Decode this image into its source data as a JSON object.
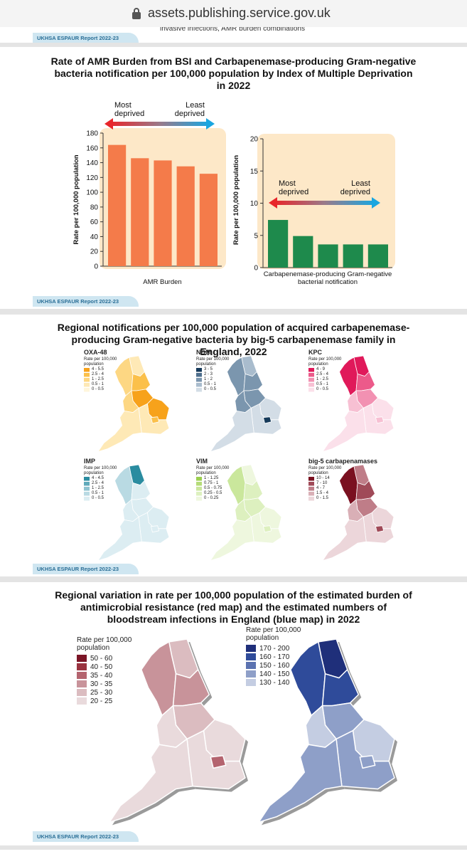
{
  "browser": {
    "url": "assets.publishing.service.gov.uk"
  },
  "fragment": {
    "caption": "invasive infections, AMR burden combinations",
    "tag": "UKHSA ESPAUR Report 2022-23"
  },
  "section1": {
    "title": "Rate of AMR Burden from BSI and Carbapenemase-producing Gram-negative bacteria notification per 100,000 population by Index of Multiple Deprivation in 2022",
    "tag": "UKHSA ESPAUR Report 2022-23"
  },
  "chart_data": [
    {
      "type": "bar",
      "categories": [
        null,
        null,
        null,
        null,
        null
      ],
      "values": [
        164,
        146,
        143,
        135,
        125
      ],
      "color": "#f47b4a",
      "background": "#fde8c8",
      "ylim": [
        0,
        180
      ],
      "yticks": [
        0,
        20,
        40,
        60,
        80,
        100,
        120,
        140,
        160,
        180
      ],
      "ylabel": "Rate per 100,000 population",
      "xlabel": "AMR Burden",
      "arrow": {
        "left": "Most deprived",
        "right": "Least deprived"
      }
    },
    {
      "type": "bar",
      "categories": [
        null,
        null,
        null,
        null,
        null
      ],
      "values": [
        7.4,
        4.9,
        3.6,
        3.6,
        3.6
      ],
      "color": "#1e8a4c",
      "background": "#fde8c8",
      "ylim": [
        0,
        21
      ],
      "yticks": [
        0,
        5,
        10,
        15,
        20
      ],
      "ylabel": "Rate per 100,000 population",
      "xlabel": "Carbapenemase-producing Gram-negative bacterial notification",
      "arrow": {
        "left": "Most deprived",
        "right": "Least deprived"
      }
    }
  ],
  "section2": {
    "title": "Regional notifications per 100,000 population of acquired carbapenemase-producing Gram-negative bacteria by big-5 carbapenemase family in England, 2022",
    "maps": [
      {
        "title": "OXA-48",
        "legend_title": "Rate per 100,000 population",
        "legend": [
          {
            "label": "4 - 5.5",
            "color": "#f7a21b"
          },
          {
            "label": "2.5 - 4",
            "color": "#fbc04a"
          },
          {
            "label": "1 - 2.5",
            "color": "#fdd783"
          },
          {
            "label": "0.5 - 1",
            "color": "#fee9b6"
          },
          {
            "label": "0 - 0.5",
            "color": "#fff6dc"
          }
        ]
      },
      {
        "title": "NDM",
        "legend_title": "Rate per 100,000 population",
        "legend": [
          {
            "label": "3 - 5",
            "color": "#163a5a"
          },
          {
            "label": "2 - 3",
            "color": "#4d6e8c"
          },
          {
            "label": "1 - 2",
            "color": "#7b96ae"
          },
          {
            "label": "0.5 - 1",
            "color": "#a9bccd"
          },
          {
            "label": "0 - 0.5",
            "color": "#d3dde6"
          }
        ]
      },
      {
        "title": "KPC",
        "legend_title": "Rate per 100,000 population",
        "legend": [
          {
            "label": "4 - 9",
            "color": "#e0195a"
          },
          {
            "label": "2.5 - 4",
            "color": "#ec5a8a"
          },
          {
            "label": "1 - 2.5",
            "color": "#f291b2"
          },
          {
            "label": "0.5 - 1",
            "color": "#f7c0d3"
          },
          {
            "label": "0 - 0.5",
            "color": "#fbe0ea"
          }
        ]
      },
      {
        "title": "IMP",
        "legend_title": "Rate per 100,000 population",
        "legend": [
          {
            "label": "4 - 4.5",
            "color": "#2a8ca0"
          },
          {
            "label": "2.5 - 4",
            "color": "#5fa9ba"
          },
          {
            "label": "1 - 2.5",
            "color": "#8fc3d0"
          },
          {
            "label": "0.5 - 1",
            "color": "#b9dae3"
          },
          {
            "label": "0 - 0.5",
            "color": "#dcedf2"
          }
        ]
      },
      {
        "title": "VIM",
        "legend_title": "Rate per 100,000 population",
        "legend": [
          {
            "label": "1 - 1.25",
            "color": "#9bcf4e"
          },
          {
            "label": "0.75 - 1",
            "color": "#b5dc78"
          },
          {
            "label": "0.5 - 0.75",
            "color": "#cae79c"
          },
          {
            "label": "0.25 - 0.5",
            "color": "#ddf0bf"
          },
          {
            "label": "0 - 0.25",
            "color": "#eef7de"
          }
        ]
      },
      {
        "title": "big-5 carbapenamases",
        "legend_title": "Rate per 100,000 population",
        "legend": [
          {
            "label": "10 - 14",
            "color": "#7a1020"
          },
          {
            "label": "7 - 10",
            "color": "#a04a58"
          },
          {
            "label": "4 - 7",
            "color": "#bf7d88"
          },
          {
            "label": "1.5 - 4",
            "color": "#d9afb6"
          },
          {
            "label": "0 - 1.5",
            "color": "#ecd6da"
          }
        ]
      }
    ],
    "tag": "UKHSA ESPAUR Report 2022-23"
  },
  "section3": {
    "title": "Regional variation in rate per 100,000 population of the estimated burden of antimicrobial resistance (red map) and the estimated numbers of bloodstream infections in England (blue map) in 2022",
    "maps": [
      {
        "legend_title": "Rate per 100,000 population",
        "legend": [
          {
            "label": "50 - 60",
            "color": "#7b1526"
          },
          {
            "label": "40 - 50",
            "color": "#9a3340"
          },
          {
            "label": "35 - 40",
            "color": "#b4646f"
          },
          {
            "label": "30 - 35",
            "color": "#c8939a"
          },
          {
            "label": "25 - 30",
            "color": "#dbbcc0"
          },
          {
            "label": "20 - 25",
            "color": "#e9dadc"
          }
        ]
      },
      {
        "legend_title": "Rate per 100,000 population",
        "legend": [
          {
            "label": "170 - 200",
            "color": "#1f2f7a"
          },
          {
            "label": "160 - 170",
            "color": "#2f4b9a"
          },
          {
            "label": "150 - 160",
            "color": "#5b72b0"
          },
          {
            "label": "140 - 150",
            "color": "#8e9fc8"
          },
          {
            "label": "130 - 140",
            "color": "#c4cde2"
          }
        ]
      }
    ],
    "tag": "UKHSA ESPAUR Report 2022-23"
  }
}
